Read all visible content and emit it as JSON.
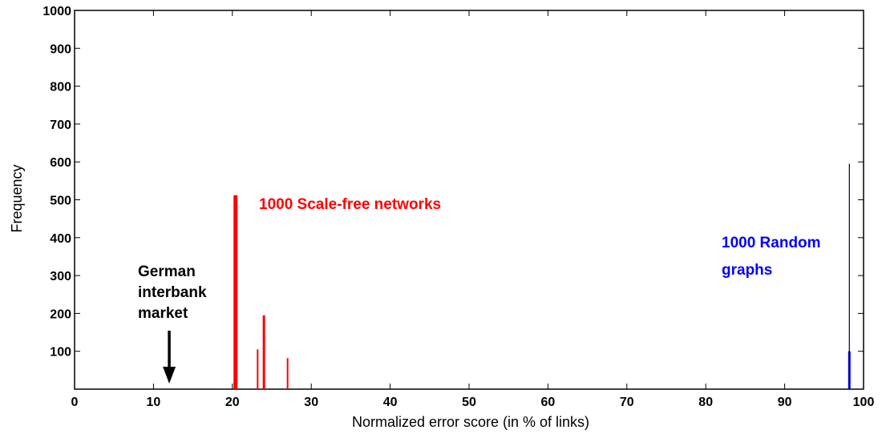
{
  "chart_data": {
    "type": "bar",
    "xlabel": "Normalized error score (in % of links)",
    "ylabel": "Frequency",
    "xlim": [
      0,
      100
    ],
    "ylim": [
      0,
      1000
    ],
    "x_ticks": [
      "0",
      "10",
      "20",
      "30",
      "40",
      "50",
      "60",
      "70",
      "80",
      "90",
      "100"
    ],
    "y_ticks": [
      "100",
      "200",
      "300",
      "400",
      "500",
      "600",
      "700",
      "800",
      "900",
      "1000"
    ],
    "series": [
      {
        "name": "1000 Scale-free networks",
        "color": "#ff0000",
        "points": [
          {
            "x": 20.4,
            "y": 512
          },
          {
            "x": 23.2,
            "y": 105
          },
          {
            "x": 24.0,
            "y": 195
          },
          {
            "x": 27.0,
            "y": 82
          }
        ]
      },
      {
        "name": "1000 Random graphs",
        "color": "#0000ff",
        "points": [
          {
            "x": 98.2,
            "y": 100
          },
          {
            "x": 98.2,
            "y": 595
          }
        ]
      }
    ],
    "annotations": [
      {
        "text": "German interbank market",
        "lines": [
          "German",
          "interbank",
          "market"
        ],
        "arrow_x": 12.0
      }
    ],
    "grid": false
  }
}
